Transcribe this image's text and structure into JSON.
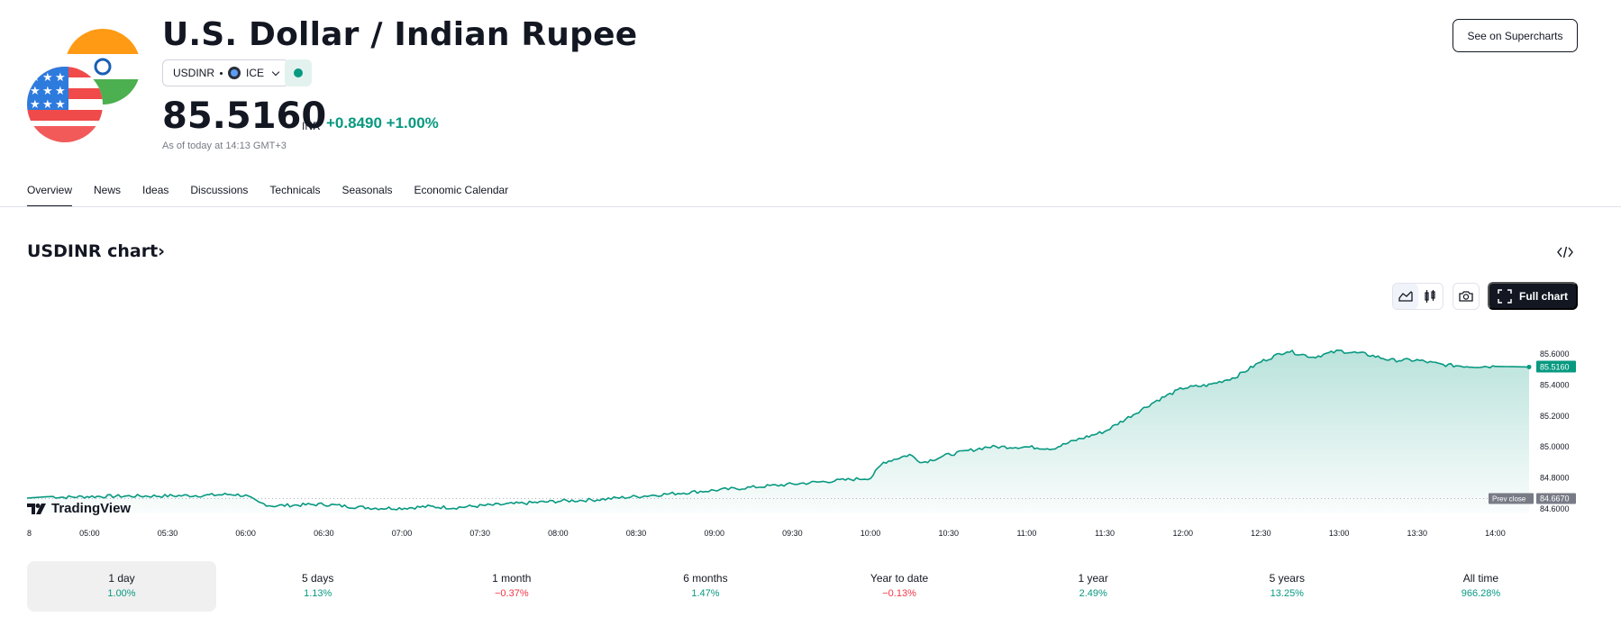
{
  "header": {
    "title": "U.S. Dollar / Indian Rupee",
    "symbol": "USDINR",
    "exchange": "ICE",
    "price": "85.5160",
    "currency": "INR",
    "change": "+0.8490",
    "change_pct": "+1.00%",
    "as_of": "As of today at 14:13 GMT+3",
    "supercharts_label": "See on Supercharts"
  },
  "tabs": [
    {
      "label": "Overview",
      "active": true
    },
    {
      "label": "News"
    },
    {
      "label": "Ideas"
    },
    {
      "label": "Discussions"
    },
    {
      "label": "Technicals"
    },
    {
      "label": "Seasonals"
    },
    {
      "label": "Economic Calendar"
    }
  ],
  "chart_section": {
    "title": "USDINR chart›",
    "full_chart_label": "Full chart",
    "logo_text": "TradingView"
  },
  "colors": {
    "accent": "#089981",
    "negative": "#f23645",
    "dark": "#131722"
  },
  "chart_data": {
    "type": "area",
    "x_ticks": [
      "8",
      "05:00",
      "05:30",
      "06:00",
      "06:30",
      "07:00",
      "07:30",
      "08:00",
      "08:30",
      "09:00",
      "09:30",
      "10:00",
      "10:30",
      "11:00",
      "11:30",
      "12:00",
      "12:30",
      "13:00",
      "13:30",
      "14:00"
    ],
    "y_ticks": [
      "85.6000",
      "85.4000",
      "85.2000",
      "85.0000",
      "84.8000",
      "84.6000"
    ],
    "ylim": [
      84.6,
      85.72
    ],
    "x_range": [
      "04:36",
      "14:13"
    ],
    "prev_close": 84.667,
    "prev_close_label": "Prev close",
    "prev_close_value": "84.6670",
    "last_value": "85.5160",
    "points": [
      [
        "04:36",
        84.67
      ],
      [
        "04:45",
        84.68
      ],
      [
        "04:50",
        84.675
      ],
      [
        "05:00",
        84.68
      ],
      [
        "05:10",
        84.682
      ],
      [
        "05:30",
        84.684
      ],
      [
        "05:45",
        84.688
      ],
      [
        "05:55",
        84.695
      ],
      [
        "06:00",
        84.685
      ],
      [
        "06:05",
        84.64
      ],
      [
        "06:10",
        84.62
      ],
      [
        "06:20",
        84.625
      ],
      [
        "06:30",
        84.63
      ],
      [
        "06:40",
        84.615
      ],
      [
        "06:50",
        84.605
      ],
      [
        "07:00",
        84.605
      ],
      [
        "07:10",
        84.615
      ],
      [
        "07:20",
        84.608
      ],
      [
        "07:30",
        84.62
      ],
      [
        "07:40",
        84.63
      ],
      [
        "07:50",
        84.64
      ],
      [
        "08:00",
        84.65
      ],
      [
        "08:15",
        84.66
      ],
      [
        "08:30",
        84.68
      ],
      [
        "08:45",
        84.7
      ],
      [
        "09:00",
        84.72
      ],
      [
        "09:15",
        84.74
      ],
      [
        "09:30",
        84.76
      ],
      [
        "09:45",
        84.78
      ],
      [
        "10:00",
        84.8
      ],
      [
        "10:05",
        84.9
      ],
      [
        "10:15",
        84.95
      ],
      [
        "10:20",
        84.9
      ],
      [
        "10:30",
        84.95
      ],
      [
        "10:45",
        85.0
      ],
      [
        "11:00",
        85.0
      ],
      [
        "11:10",
        84.99
      ],
      [
        "11:20",
        85.05
      ],
      [
        "11:30",
        85.1
      ],
      [
        "11:40",
        85.2
      ],
      [
        "11:50",
        85.3
      ],
      [
        "12:00",
        85.38
      ],
      [
        "12:10",
        85.4
      ],
      [
        "12:20",
        85.45
      ],
      [
        "12:30",
        85.55
      ],
      [
        "12:40",
        85.62
      ],
      [
        "12:50",
        85.58
      ],
      [
        "13:00",
        85.62
      ],
      [
        "13:10",
        85.6
      ],
      [
        "13:20",
        85.56
      ],
      [
        "13:30",
        85.56
      ],
      [
        "13:40",
        85.53
      ],
      [
        "13:50",
        85.52
      ],
      [
        "14:00",
        85.52
      ],
      [
        "14:13",
        85.516
      ]
    ]
  },
  "periods": [
    {
      "label": "1 day",
      "value": "1.00%",
      "sign": "pos",
      "active": true
    },
    {
      "label": "5 days",
      "value": "1.13%",
      "sign": "pos"
    },
    {
      "label": "1 month",
      "value": "−0.37%",
      "sign": "neg"
    },
    {
      "label": "6 months",
      "value": "1.47%",
      "sign": "pos"
    },
    {
      "label": "Year to date",
      "value": "−0.13%",
      "sign": "neg"
    },
    {
      "label": "1 year",
      "value": "2.49%",
      "sign": "pos"
    },
    {
      "label": "5 years",
      "value": "13.25%",
      "sign": "pos"
    },
    {
      "label": "All time",
      "value": "966.28%",
      "sign": "pos"
    }
  ]
}
